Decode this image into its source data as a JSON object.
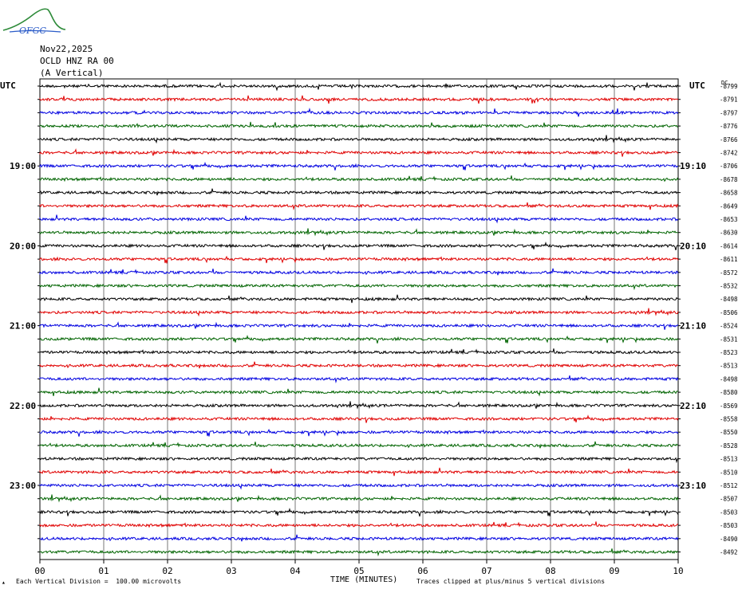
{
  "header": {
    "logo_text": "OFGC",
    "date": "Nov22,2025",
    "station": "OCLD HNZ RA 00",
    "component": "(A Vertical)"
  },
  "footer": {
    "left_note": "Each Vertical Division =  100.00 microvolts",
    "x_title": "TIME (MINUTES)",
    "right_note": "Traces clipped at plus/minus 5 vertical divisions"
  },
  "chart_data": {
    "type": "line",
    "title": "",
    "xlabel": "TIME (MINUTES)",
    "ylabel": "",
    "x_ticks": [
      "00",
      "01",
      "02",
      "03",
      "04",
      "05",
      "06",
      "07",
      "08",
      "09",
      "10"
    ],
    "xlim": [
      0,
      10
    ],
    "left_axis_label": "UTC",
    "right_axis_label": "UTC",
    "right_top_label": "DC",
    "left_time_labels": [
      {
        "trace": 6,
        "label": "19:00"
      },
      {
        "trace": 12,
        "label": "20:00"
      },
      {
        "trace": 18,
        "label": "21:00"
      },
      {
        "trace": 24,
        "label": "22:00"
      },
      {
        "trace": 30,
        "label": "23:00"
      }
    ],
    "right_time_labels": [
      {
        "trace": 6,
        "label": "19:10"
      },
      {
        "trace": 12,
        "label": "20:10"
      },
      {
        "trace": 18,
        "label": "21:10"
      },
      {
        "trace": 24,
        "label": "22:10"
      },
      {
        "trace": 30,
        "label": "23:10"
      }
    ],
    "trace_colors": [
      "#000000",
      "#e00000",
      "#0000e0",
      "#006400"
    ],
    "dc_offsets": [
      "-8799",
      "-8791",
      "-8797",
      "-8776",
      "-8766",
      "-8742",
      "-8706",
      "-8678",
      "-8658",
      "-8649",
      "-8653",
      "-8630",
      "-8614",
      "-8611",
      "-8572",
      "-8532",
      "-8498",
      "-8506",
      "-8524",
      "-8531",
      "-8523",
      "-8513",
      "-8498",
      "-8580",
      "-8569",
      "-8558",
      "-8550",
      "-8528",
      "-8513",
      "-8510",
      "-8512",
      "-8507",
      "-8503",
      "-8503",
      "-8490",
      "-8492"
    ],
    "trace_count": 36,
    "grid": true
  }
}
